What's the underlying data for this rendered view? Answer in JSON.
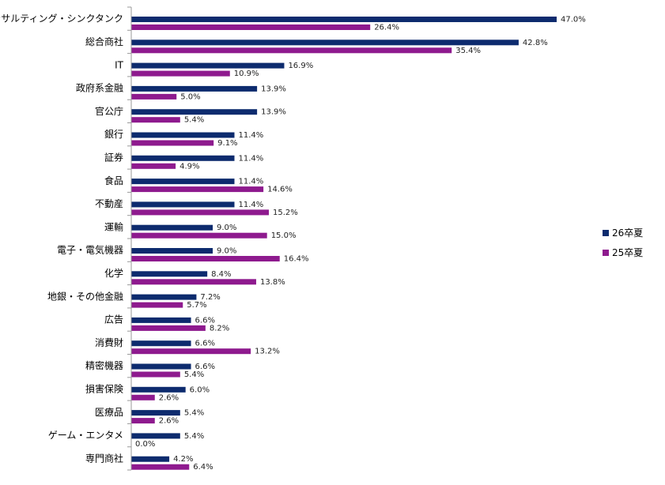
{
  "chart_data": {
    "type": "bar",
    "orientation": "horizontal",
    "title": "",
    "xlabel": "",
    "ylabel": "",
    "xlim": [
      0,
      50
    ],
    "grid": false,
    "legend_position": "right",
    "categories": [
      "コンサルティング・シンクタンク",
      "総合商社",
      "IT",
      "政府系金融",
      "官公庁",
      "銀行",
      "証券",
      "食品",
      "不動産",
      "運輸",
      "電子・電気機器",
      "化学",
      "地銀・その他金融",
      "広告",
      "消費財",
      "精密機器",
      "損害保険",
      "医療品",
      "ゲーム・エンタメ",
      "専門商社"
    ],
    "series": [
      {
        "name": "26卒夏",
        "color": "#0d2b6e",
        "values": [
          47.0,
          42.8,
          16.9,
          13.9,
          13.9,
          11.4,
          11.4,
          11.4,
          11.4,
          9.0,
          9.0,
          8.4,
          7.2,
          6.6,
          6.6,
          6.6,
          6.0,
          5.4,
          5.4,
          4.2
        ],
        "labels": [
          "47.0%",
          "42.8%",
          "16.9%",
          "13.9%",
          "13.9%",
          "11.4%",
          "11.4%",
          "11.4%",
          "11.4%",
          "9.0%",
          "9.0%",
          "8.4%",
          "7.2%",
          "6.6%",
          "6.6%",
          "6.6%",
          "6.0%",
          "5.4%",
          "5.4%",
          "4.2%"
        ]
      },
      {
        "name": "25卒夏",
        "color": "#8e1a8e",
        "values": [
          26.4,
          35.4,
          10.9,
          5.0,
          5.4,
          9.1,
          4.9,
          14.6,
          15.2,
          15.0,
          16.4,
          13.8,
          5.7,
          8.2,
          13.2,
          5.4,
          2.6,
          2.6,
          0.0,
          6.4
        ],
        "labels": [
          "26.4%",
          "35.4%",
          "10.9%",
          "5.0%",
          "5.4%",
          "9.1%",
          "4.9%",
          "14.6%",
          "15.2%",
          "15.0%",
          "16.4%",
          "13.8%",
          "5.7%",
          "8.2%",
          "13.2%",
          "5.4%",
          "2.6%",
          "2.6%",
          "0.0%",
          "6.4%"
        ]
      }
    ]
  }
}
